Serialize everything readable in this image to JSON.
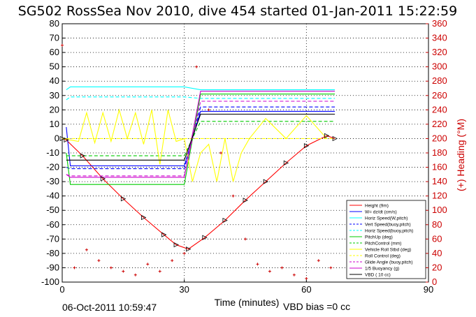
{
  "chart_data": {
    "type": "line",
    "title": "SG502 RossSea Nov 2010, dive 454 started 01-Jan-2011 15:22:59",
    "xlabel": "Time (minutes)",
    "ylabel": "",
    "y2label": "(+) Heading (°M)",
    "xlim": [
      0,
      90
    ],
    "ylim": [
      -100,
      80
    ],
    "y2lim": [
      0,
      360
    ],
    "xticks": [
      "0",
      "30",
      "60",
      "90"
    ],
    "yticks": [
      "80",
      "70",
      "60",
      "50",
      "40",
      "30",
      "20",
      "10",
      "0",
      "-10",
      "-20",
      "-30",
      "-40",
      "-50",
      "-60",
      "-70",
      "-80",
      "-90",
      "-100"
    ],
    "y2ticks": [
      "360",
      "340",
      "320",
      "300",
      "280",
      "260",
      "240",
      "220",
      "200",
      "180",
      "160",
      "140",
      "120",
      "100",
      "80",
      "60",
      "40",
      "20",
      "0"
    ],
    "footer_date": "06-Oct-2011 10:59:47",
    "vbd_bias": "VBD bias =0 cc",
    "grid": true,
    "legend_position": "bottom-right",
    "colors": {
      "height": "#ff0000",
      "w": "#0000ff",
      "horiz": "#00ffff",
      "pitch": "#00cc00",
      "roll": "#ffff00",
      "buoy": "#cc00cc",
      "vbd": "#000000",
      "heading": "#cc0000"
    },
    "legend": [
      "Height (9m)",
      "W= dz/dt (cm/s)",
      "Horiz Speed(W,pitch)",
      "Vert Speed(buoy,pitch)",
      "Horiz Speed(buoy,pitch)",
      "PitchUp (deg)",
      "PitchControl (mm)",
      "Vehicle Roll Stbd (deg)",
      "Roll Control (deg)",
      "Glide Angle (buoy,pitch)",
      "1/5 Buoyancy (g)",
      "VBD ( 10 cc)"
    ],
    "series": [
      {
        "name": "Height (9m)",
        "x": [
          0,
          1,
          5,
          10,
          15,
          20,
          25,
          28,
          31,
          35,
          40,
          45,
          50,
          55,
          60,
          65,
          67
        ],
        "y": [
          0,
          -1,
          -12,
          -28,
          -42,
          -55,
          -67,
          -74,
          -77,
          -69,
          -57,
          -43,
          -30,
          -17,
          -5,
          2,
          0
        ]
      },
      {
        "name": "W= dz/dt (cm/s)",
        "x": [
          1,
          2,
          30,
          34,
          67
        ],
        "y": [
          8,
          -19,
          -19,
          19,
          19
        ]
      },
      {
        "name": "Horiz Speed(W,pitch)",
        "x": [
          1,
          2,
          30,
          34,
          67
        ],
        "y": [
          34,
          36,
          36,
          34,
          34
        ]
      },
      {
        "name": "Vert Speed(buoy,pitch)",
        "x": [
          1,
          2,
          30,
          34,
          67
        ],
        "y": [
          -20,
          -21,
          -21,
          22,
          22
        ]
      },
      {
        "name": "Horiz Speed(buoy,pitch)",
        "x": [
          1,
          2,
          30,
          34,
          67
        ],
        "y": [
          27,
          29,
          29,
          28,
          28
        ]
      },
      {
        "name": "PitchUp (deg)",
        "x": [
          1,
          2,
          30,
          34,
          67
        ],
        "y": [
          -10,
          -32,
          -32,
          31,
          31
        ]
      },
      {
        "name": "PitchControl (mm)",
        "x": [
          1,
          2,
          30,
          34,
          67
        ],
        "y": [
          -12,
          -12,
          -12,
          12,
          12
        ]
      },
      {
        "name": "Vehicle Roll Stbd (deg)",
        "x": [
          0,
          4,
          6,
          8,
          10,
          12,
          14,
          16,
          18,
          20,
          22,
          24,
          26,
          28,
          30,
          32,
          34,
          36,
          38,
          40,
          42,
          44,
          46,
          50,
          55,
          60,
          65
        ],
        "y": [
          0,
          -2,
          18,
          -3,
          18,
          -2,
          20,
          0,
          18,
          -4,
          20,
          -18,
          20,
          -2,
          0,
          -30,
          -10,
          -4,
          -30,
          0,
          -30,
          -10,
          0,
          14,
          0,
          16,
          0
        ]
      },
      {
        "name": "Roll Control (deg)",
        "x": [
          1,
          67
        ],
        "y": [
          0,
          0
        ]
      },
      {
        "name": "Glide Angle (buoy,pitch)",
        "x": [
          1,
          2,
          30,
          34,
          67
        ],
        "y": [
          -25,
          -26,
          -26,
          26,
          26
        ]
      },
      {
        "name": "1/5 Buoyancy (g)",
        "x": [
          1,
          2,
          30,
          34,
          67
        ],
        "y": [
          -25,
          -27,
          -27,
          33,
          33
        ]
      },
      {
        "name": "VBD ( 10 cc)",
        "x": [
          1,
          2,
          30,
          34,
          67
        ],
        "y": [
          -15,
          -15,
          -15,
          17,
          17
        ]
      },
      {
        "name": "Heading",
        "axis": "right",
        "x": [
          0,
          3,
          6,
          9,
          12,
          15,
          18,
          21,
          24,
          27,
          30,
          33,
          36,
          39,
          42,
          45,
          48,
          51,
          54,
          57,
          60,
          63,
          66
        ],
        "y": [
          330,
          20,
          45,
          30,
          20,
          15,
          10,
          25,
          15,
          30,
          40,
          300,
          240,
          180,
          120,
          60,
          25,
          15,
          20,
          10,
          5,
          30,
          20
        ]
      }
    ]
  }
}
